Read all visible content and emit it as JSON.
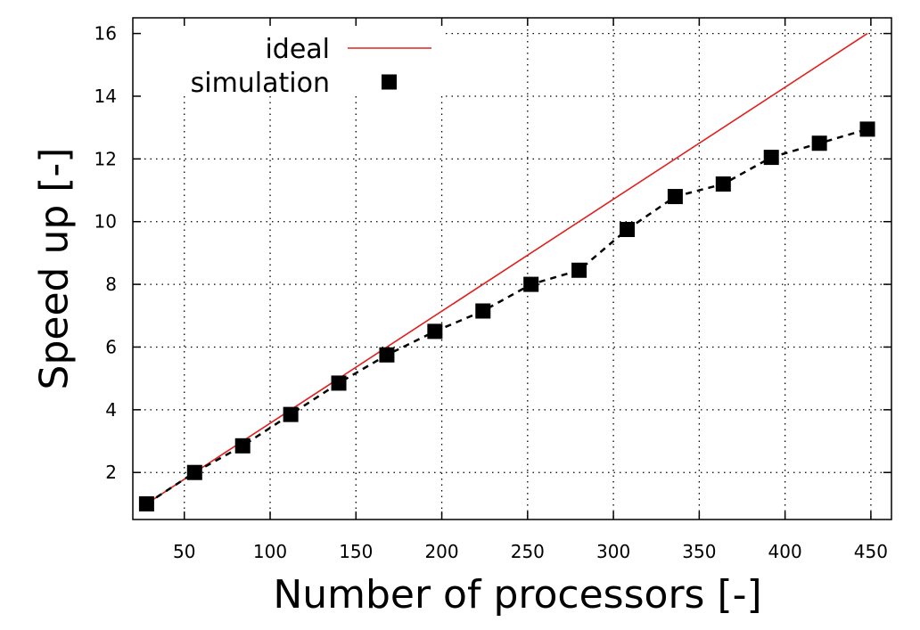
{
  "chart_data": {
    "type": "line",
    "title": "",
    "xlabel": "Number of processors [-]",
    "ylabel": "Speed up [-]",
    "xlim": [
      20,
      462
    ],
    "ylim": [
      0.5,
      16.5
    ],
    "xticks": [
      50,
      100,
      150,
      200,
      250,
      300,
      350,
      400,
      450
    ],
    "yticks": [
      2,
      4,
      6,
      8,
      10,
      12,
      14,
      16
    ],
    "grid": true,
    "grid_style": "dotted",
    "legend_position": "top-left",
    "series": [
      {
        "name": "ideal",
        "style": "solid-line",
        "color": "#e0201c",
        "x": [
          28,
          448
        ],
        "y": [
          1,
          16
        ]
      },
      {
        "name": "simulation",
        "style": "squares-dashed",
        "color": "#000000",
        "x": [
          28,
          56,
          84,
          112,
          140,
          168,
          196,
          224,
          252,
          280,
          308,
          336,
          364,
          392,
          420,
          448
        ],
        "y": [
          1.0,
          2.0,
          2.85,
          3.85,
          4.85,
          5.75,
          6.5,
          7.15,
          8.0,
          8.45,
          9.75,
          10.8,
          11.2,
          12.05,
          12.5,
          12.95
        ]
      }
    ]
  }
}
